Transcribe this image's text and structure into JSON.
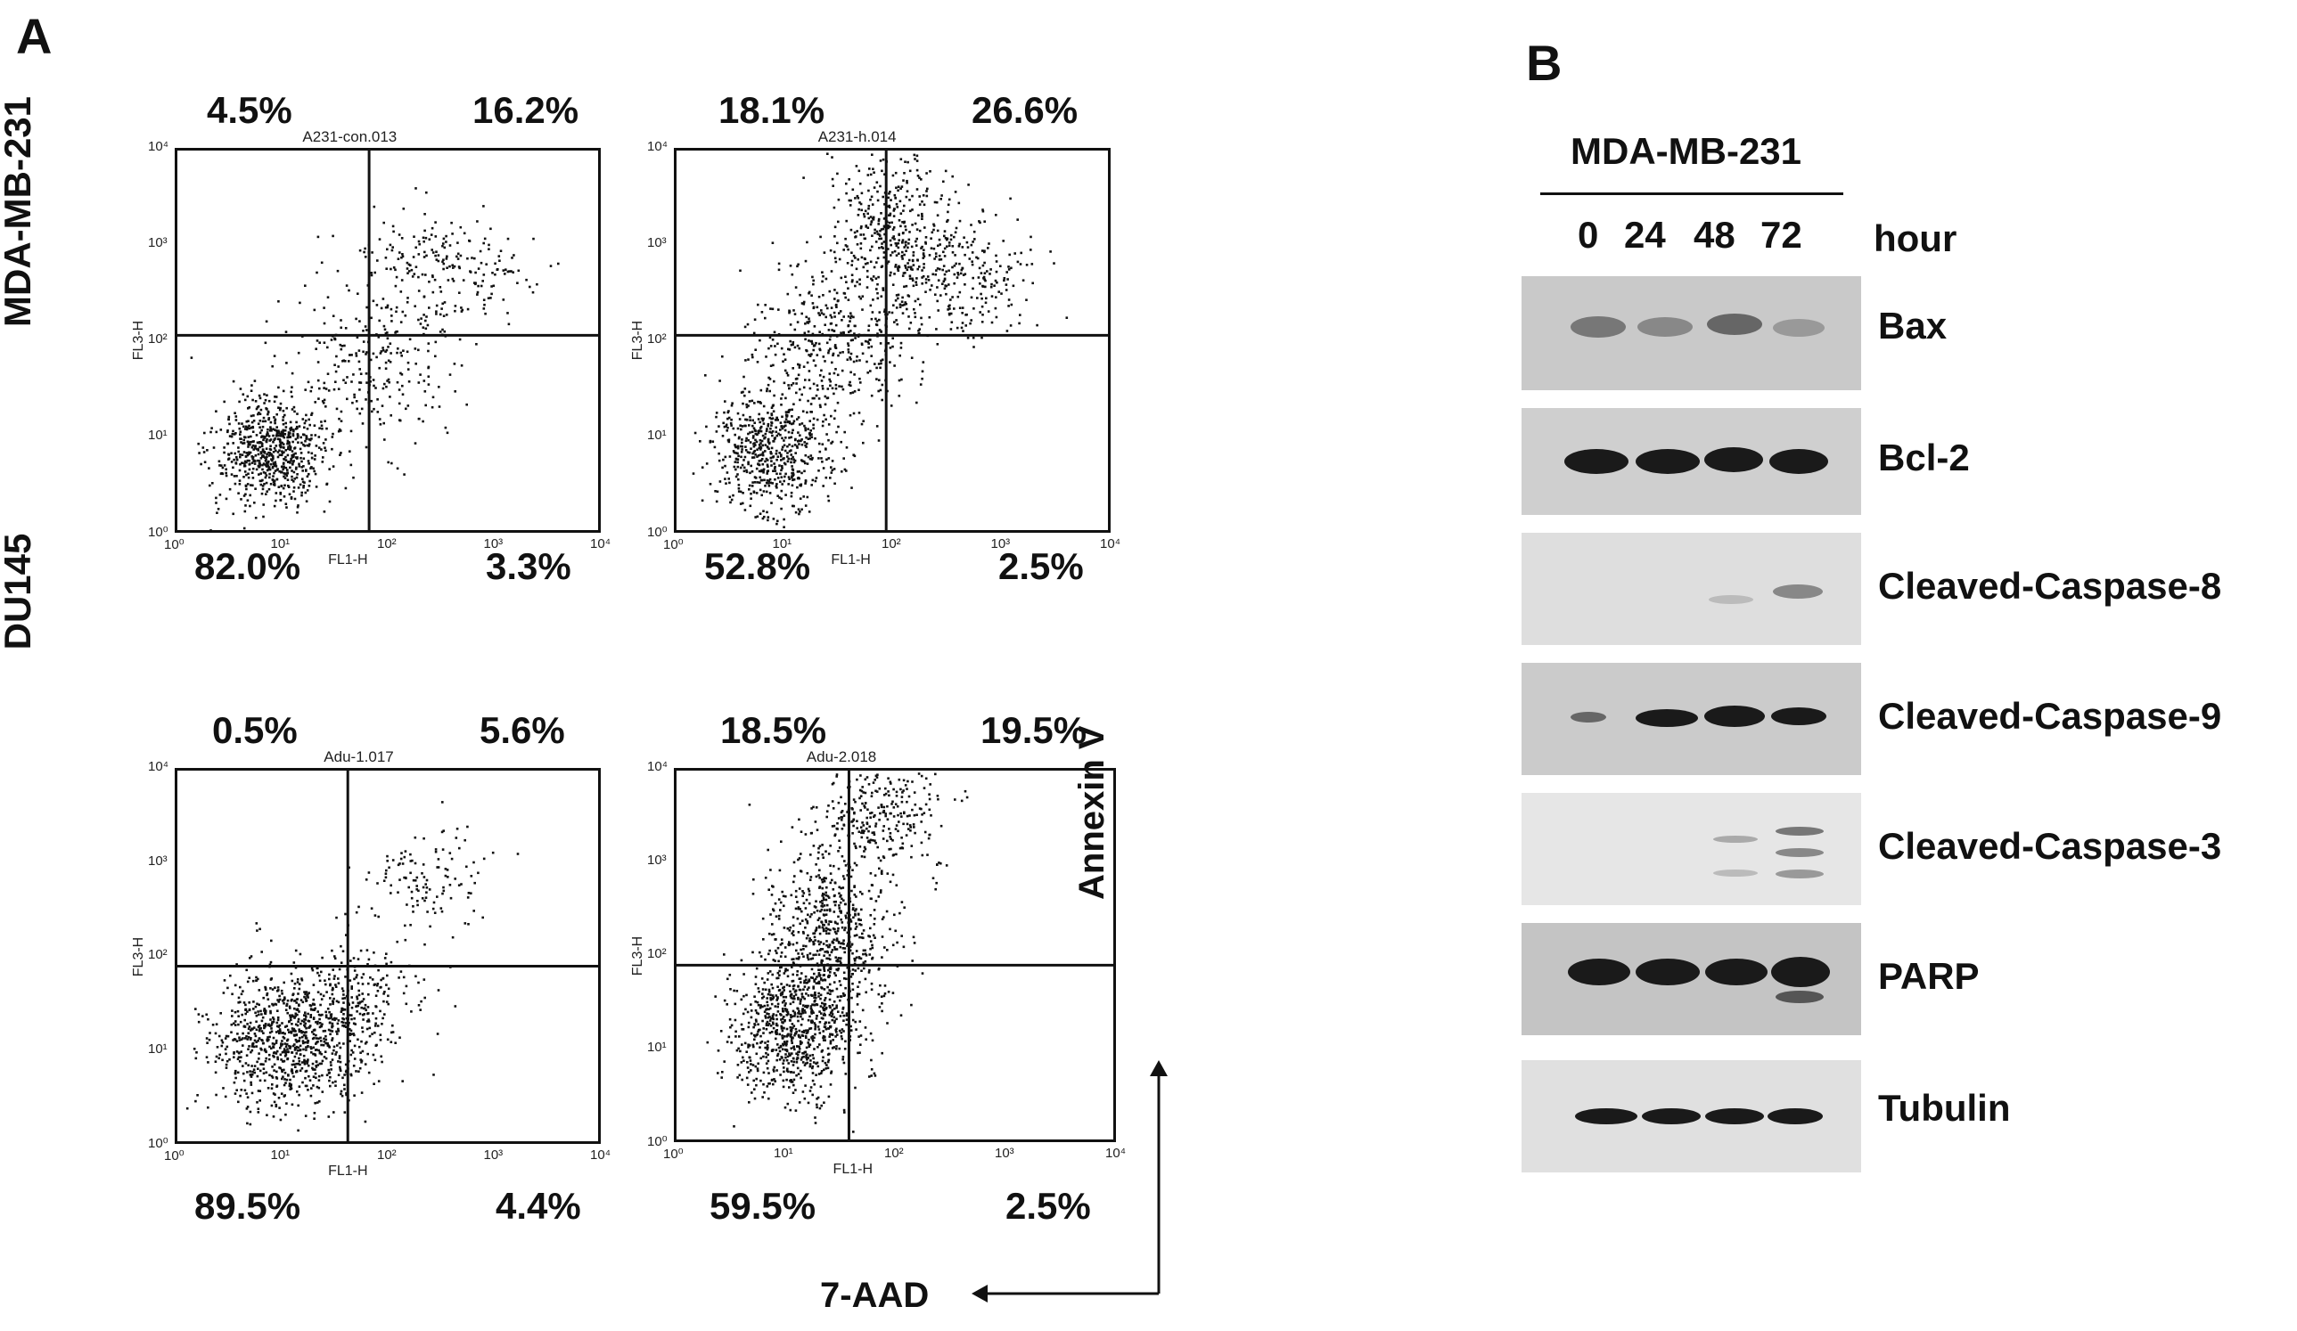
{
  "panelA": {
    "label": "A",
    "row_labels": [
      "MDA-MB-231",
      "DU145"
    ],
    "plots": [
      {
        "title": "A231-con.013",
        "q_ul": "4.5%",
        "q_ur": "16.2%",
        "q_ll": "82.0%",
        "q_lr": "3.3%"
      },
      {
        "title": "A231-h.014",
        "q_ul": "18.1%",
        "q_ur": "26.6%",
        "q_ll": "52.8%",
        "q_lr": "2.5%"
      },
      {
        "title": "Adu-1.017",
        "q_ul": "0.5%",
        "q_ur": "5.6%",
        "q_ll": "89.5%",
        "q_lr": "4.4%"
      },
      {
        "title": "Adu-2.018",
        "q_ul": "18.5%",
        "q_ur": "19.5%",
        "q_ll": "59.5%",
        "q_lr": "2.5%"
      }
    ],
    "axis": {
      "x_title": "FL1-H",
      "y_title": "FL3-H",
      "x_ticks": [
        "10⁰",
        "10¹",
        "10²",
        "10³",
        "10⁴"
      ],
      "y_ticks": [
        "10⁰",
        "10¹",
        "10²",
        "10³",
        "10⁴"
      ]
    },
    "arrow_y_label": "Annexin V",
    "arrow_x_label": "7-AAD"
  },
  "panelB": {
    "label": "B",
    "cell_line": "MDA-MB-231",
    "lanes": [
      "0",
      "24",
      "48",
      "72"
    ],
    "unit": "hour",
    "blots": [
      {
        "label": "Bax"
      },
      {
        "label": "Bcl-2"
      },
      {
        "label": "Cleaved-Caspase-8"
      },
      {
        "label": "Cleaved-Caspase-9"
      },
      {
        "label": "Cleaved-Caspase-3"
      },
      {
        "label": "PARP"
      },
      {
        "label": "Tubulin"
      }
    ]
  }
}
